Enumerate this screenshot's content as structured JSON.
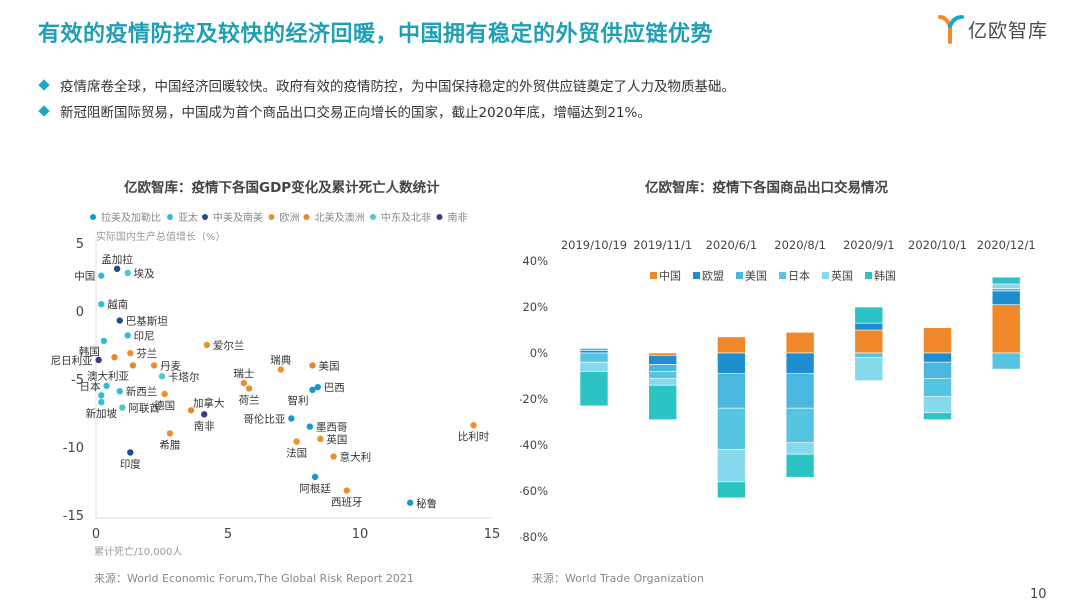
{
  "header": {
    "title": "有效的疫情防控及较快的经济回暖，中国拥有稳定的外贸供应链优势",
    "logo_text": "亿欧智库"
  },
  "bullets": [
    "疫情席卷全球，中国经济回暖较快。政府有效的疫情防控，为中国保持稳定的外贸供应链奠定了人力及物质基础。",
    "新冠阻断国际贸易，中国成为首个商品出口交易正向增长的国家，截止2020年底，增幅达到21%。"
  ],
  "left_chart": {
    "title": "亿欧智库：疫情下各国GDP变化及累计死亡人数统计",
    "source": "来源：World Economic Forum,The Global Risk Report 2021"
  },
  "right_chart": {
    "title": "亿欧智库：疫情下各国商品出口交易情况",
    "source": "来源：World Trade Organization"
  },
  "page_number": "10",
  "chart_data": [
    {
      "type": "scatter",
      "title": "亿欧智库：疫情下各国GDP变化及累计死亡人数统计",
      "xlabel": "累计死亡/10,000人",
      "ylabel": "实际国内生产总值增长（%）",
      "xlim": [
        0,
        15
      ],
      "ylim": [
        -15,
        5
      ],
      "x_ticks": [
        0,
        5,
        10,
        15
      ],
      "y_ticks": [
        5,
        0,
        -5,
        -10,
        -15
      ],
      "grid": false,
      "legend_position": "top",
      "series": [
        {
          "name": "拉美及加勒比",
          "color": "#1a98c8"
        },
        {
          "name": "亚太",
          "color": "#35bcd0"
        },
        {
          "name": "中美及南美",
          "color": "#1c4f8a"
        },
        {
          "name": "欧洲",
          "color": "#ef8e2c"
        },
        {
          "name": "北美及澳洲",
          "color": "#e8862a"
        },
        {
          "name": "中东及北非",
          "color": "#4ec7cf"
        },
        {
          "name": "南非",
          "color": "#3a3a86"
        }
      ],
      "points": [
        {
          "label": "孟加拉",
          "x": 0.8,
          "y": 3.1,
          "series": 2,
          "label_pos": "top"
        },
        {
          "label": "中国",
          "x": 0.2,
          "y": 2.6,
          "series": 1,
          "label_pos": "left"
        },
        {
          "label": "埃及",
          "x": 1.2,
          "y": 2.8,
          "series": 5,
          "label_pos": "right"
        },
        {
          "label": "越南",
          "x": 0.2,
          "y": 0.5,
          "series": 1,
          "label_pos": "right"
        },
        {
          "label": "巴基斯坦",
          "x": 0.9,
          "y": -0.7,
          "series": 2,
          "label_pos": "right"
        },
        {
          "label": "印尼",
          "x": 1.2,
          "y": -1.8,
          "series": 1,
          "label_pos": "right"
        },
        {
          "label": "韩国",
          "x": 0.3,
          "y": -2.2,
          "series": 1,
          "label_pos": "below-left"
        },
        {
          "label": "芬兰",
          "x": 1.3,
          "y": -3.1,
          "series": 3,
          "label_pos": "right"
        },
        {
          "label": "尼日利亚",
          "x": 0.1,
          "y": -3.6,
          "series": 6,
          "label_pos": "left"
        },
        {
          "label": "",
          "x": 0.7,
          "y": -3.4,
          "series": 4,
          "label_pos": "none"
        },
        {
          "label": "丹麦",
          "x": 2.2,
          "y": -4.0,
          "series": 3,
          "label_pos": "right"
        },
        {
          "label": "澳大利亚",
          "x": 1.4,
          "y": -4.0,
          "series": 4,
          "label_pos": "below-left"
        },
        {
          "label": "爱尔兰",
          "x": 4.2,
          "y": -2.5,
          "series": 3,
          "label_pos": "right"
        },
        {
          "label": "卡塔尔",
          "x": 2.5,
          "y": -4.8,
          "series": 5,
          "label_pos": "right"
        },
        {
          "label": "日本",
          "x": 0.4,
          "y": -5.5,
          "series": 1,
          "label_pos": "left"
        },
        {
          "label": "",
          "x": 0.2,
          "y": -6.2,
          "series": 1,
          "label_pos": "none"
        },
        {
          "label": "新西兰",
          "x": 0.9,
          "y": -5.9,
          "series": 1,
          "label_pos": "right"
        },
        {
          "label": "新加坡",
          "x": 0.2,
          "y": -6.7,
          "series": 1,
          "label_pos": "below"
        },
        {
          "label": "阿联酋",
          "x": 1.0,
          "y": -7.1,
          "series": 5,
          "label_pos": "right"
        },
        {
          "label": "德国",
          "x": 2.6,
          "y": -6.1,
          "series": 3,
          "label_pos": "below"
        },
        {
          "label": "加拿大",
          "x": 3.6,
          "y": -7.3,
          "series": 4,
          "label_pos": "top-right"
        },
        {
          "label": "南非",
          "x": 4.1,
          "y": -7.6,
          "series": 6,
          "label_pos": "below"
        },
        {
          "label": "希腊",
          "x": 2.8,
          "y": -9.0,
          "series": 3,
          "label_pos": "below"
        },
        {
          "label": "瑞士",
          "x": 5.6,
          "y": -5.3,
          "series": 3,
          "label_pos": "top"
        },
        {
          "label": "荷兰",
          "x": 5.8,
          "y": -5.7,
          "series": 3,
          "label_pos": "below"
        },
        {
          "label": "瑞典",
          "x": 7.0,
          "y": -4.3,
          "series": 3,
          "label_pos": "top"
        },
        {
          "label": "美国",
          "x": 8.2,
          "y": -4.0,
          "series": 4,
          "label_pos": "right"
        },
        {
          "label": "巴西",
          "x": 8.4,
          "y": -5.6,
          "series": 0,
          "label_pos": "right"
        },
        {
          "label": "智利",
          "x": 8.2,
          "y": -5.8,
          "series": 0,
          "label_pos": "below-left"
        },
        {
          "label": "哥伦比亚",
          "x": 7.4,
          "y": -7.9,
          "series": 0,
          "label_pos": "left"
        },
        {
          "label": "墨西哥",
          "x": 8.1,
          "y": -8.5,
          "series": 0,
          "label_pos": "right"
        },
        {
          "label": "英国",
          "x": 8.5,
          "y": -9.4,
          "series": 3,
          "label_pos": "right"
        },
        {
          "label": "法国",
          "x": 7.6,
          "y": -9.6,
          "series": 3,
          "label_pos": "below"
        },
        {
          "label": "意大利",
          "x": 9.0,
          "y": -10.7,
          "series": 3,
          "label_pos": "right"
        },
        {
          "label": "比利时",
          "x": 14.3,
          "y": -8.4,
          "series": 3,
          "label_pos": "below"
        },
        {
          "label": "印度",
          "x": 1.3,
          "y": -10.4,
          "series": 2,
          "label_pos": "below"
        },
        {
          "label": "阿根廷",
          "x": 8.3,
          "y": -12.2,
          "series": 0,
          "label_pos": "below"
        },
        {
          "label": "西班牙",
          "x": 9.5,
          "y": -13.2,
          "series": 3,
          "label_pos": "below"
        },
        {
          "label": "秘鲁",
          "x": 11.9,
          "y": -14.1,
          "series": 0,
          "label_pos": "right"
        }
      ]
    },
    {
      "type": "bar",
      "stacked": true,
      "title": "亿欧智库：疫情下各国商品出口交易情况",
      "categories": [
        "2019/10/19",
        "2019/11/1",
        "2020/6/1",
        "2020/8/1",
        "2020/9/1",
        "2020/10/1",
        "2020/12/1"
      ],
      "ylim": [
        -80,
        40
      ],
      "y_ticks": [
        40,
        20,
        0,
        -20,
        -40,
        -60,
        -80
      ],
      "y_tick_suffix": "%",
      "grid": false,
      "legend_position": "top",
      "series": [
        {
          "name": "中国",
          "color": "#f0882a",
          "values": [
            0,
            -1,
            7,
            9,
            10,
            11,
            21
          ]
        },
        {
          "name": "欧盟",
          "color": "#1f8ecf",
          "values": [
            1,
            -4,
            -9,
            -9,
            3,
            -4,
            6
          ]
        },
        {
          "name": "美国",
          "color": "#4ab7df",
          "values": [
            1,
            -3,
            -15,
            -15,
            0,
            -7,
            1
          ]
        },
        {
          "name": "日本",
          "color": "#55c4e2",
          "values": [
            -4,
            -3,
            -18,
            -15,
            -2,
            -8,
            -7
          ]
        },
        {
          "name": "英国",
          "color": "#86d8ec",
          "values": [
            -4,
            -3,
            -14,
            -5,
            -10,
            -7,
            2
          ]
        },
        {
          "name": "韩国",
          "color": "#2cc3c4",
          "values": [
            -15,
            -15,
            -7,
            -10,
            7,
            -3,
            3
          ]
        }
      ]
    }
  ]
}
